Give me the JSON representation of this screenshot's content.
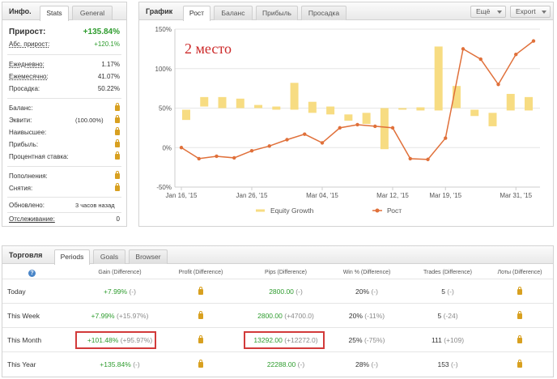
{
  "info": {
    "title": "Инфо.",
    "tabs": [
      "Stats",
      "General"
    ],
    "rows": [
      {
        "label": "Прирост:",
        "value": "+135.84%"
      },
      {
        "label": "Абс. прирост:",
        "value": "+120.1%"
      },
      {
        "label": "Ежедневно:",
        "value": "1.17%"
      },
      {
        "label": "Ежемесячно:",
        "value": "41.07%"
      },
      {
        "label": "Просадка:",
        "value": "50.22%"
      },
      {
        "label": "Баланс:",
        "value": ""
      },
      {
        "label": "Эквити:",
        "value": "",
        "mid": "(100.00%)"
      },
      {
        "label": "Наивысшее:",
        "value": ""
      },
      {
        "label": "Прибыль:",
        "value": ""
      },
      {
        "label": "Процентная ставка:",
        "value": ""
      },
      {
        "label": "Пополнения:",
        "value": ""
      },
      {
        "label": "Снятия:",
        "value": ""
      },
      {
        "label": "Обновлено:",
        "value": "",
        "mid": "3 часов назад"
      },
      {
        "label": "Отслеживание:",
        "value": "0"
      }
    ],
    "colors": {
      "positive": "#2e9c2e",
      "lock": "#d8a020"
    }
  },
  "chartpanel": {
    "title": "График",
    "tabs": [
      "Рост",
      "Баланс",
      "Прибыль",
      "Просадка"
    ],
    "more_label": "Ещё",
    "export_label": "Export",
    "annotation": "2 место"
  },
  "chart_data": {
    "type": "bar+line",
    "ylim": [
      -50,
      150
    ],
    "yticks": [
      "150%",
      "100%",
      "50%",
      "0%",
      "-50%"
    ],
    "ytick_values": [
      150,
      100,
      50,
      0,
      -50
    ],
    "xticks": [
      "Jan 16, '15",
      "Jan 26, '15",
      "Mar 04, '15",
      "Mar 12, '15",
      "Mar 19, '15",
      "Mar 31, '15"
    ],
    "xtick_index": [
      0,
      4,
      8,
      12,
      15,
      19
    ],
    "legend_position": "bottom-center",
    "grid": true,
    "series": [
      {
        "name": "Equity Growth",
        "kind": "bar",
        "color": "#f7dc82",
        "values": [
          [
            48,
            35
          ],
          [
            52,
            64
          ],
          [
            50,
            64
          ],
          [
            50,
            62
          ],
          [
            50,
            54
          ],
          [
            48,
            52
          ],
          [
            48,
            82
          ],
          [
            44,
            58
          ],
          [
            42,
            52
          ],
          [
            34,
            42
          ],
          [
            30,
            44
          ],
          [
            -2,
            50
          ],
          [
            48,
            50
          ],
          [
            47,
            51
          ],
          [
            47,
            128
          ],
          [
            50,
            78
          ],
          [
            40,
            48
          ],
          [
            27,
            44
          ],
          [
            47,
            68
          ],
          [
            47,
            64
          ]
        ]
      },
      {
        "name": "Рост",
        "kind": "line",
        "color": "#e0703a",
        "values": [
          0,
          -14,
          -11,
          -13,
          -4,
          2,
          10,
          17,
          6,
          25,
          29,
          27,
          25,
          -14,
          -15,
          12,
          125,
          112,
          80,
          118,
          135
        ]
      }
    ]
  },
  "trade": {
    "title": "Торговля",
    "tabs": [
      "Periods",
      "Goals",
      "Browser"
    ],
    "help_label": "?",
    "headers": [
      "Gain (Difference)",
      "Profit (Difference)",
      "Pips (Difference)",
      "Win % (Difference)",
      "Trades (Difference)",
      "Лоты (Difference)"
    ],
    "rows": [
      {
        "period": "Today",
        "gain": "+7.99%",
        "gain_diff": "(-)",
        "pips": "2800.00",
        "pips_diff": "(-)",
        "win": "20%",
        "win_diff": "(-)",
        "trades": "5",
        "trades_diff": "(-)"
      },
      {
        "period": "This Week",
        "gain": "+7.99%",
        "gain_diff": "(+15.97%)",
        "pips": "2800.00",
        "pips_diff": "(+4700.0)",
        "win": "20%",
        "win_diff": "(-11%)",
        "trades": "5",
        "trades_diff": "(-24)"
      },
      {
        "period": "This Month",
        "gain": "+101.48%",
        "gain_diff": "(+95.97%)",
        "pips": "13292.00",
        "pips_diff": "(+12272.0)",
        "win": "25%",
        "win_diff": "(-75%)",
        "trades": "111",
        "trades_diff": "(+109)"
      },
      {
        "period": "This Year",
        "gain": "+135.84%",
        "gain_diff": "(-)",
        "pips": "22288.00",
        "pips_diff": "(-)",
        "win": "28%",
        "win_diff": "(-)",
        "trades": "153",
        "trades_diff": "(-)"
      }
    ],
    "highlight_color": "#d23a3a"
  }
}
